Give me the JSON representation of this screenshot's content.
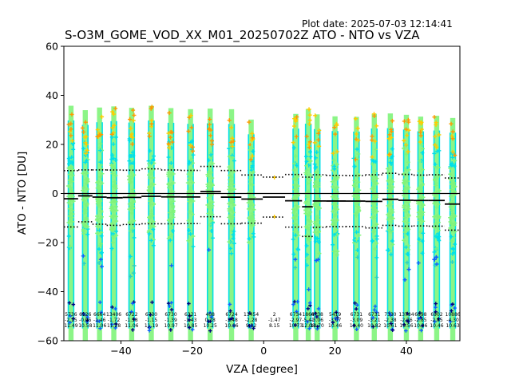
{
  "header": {
    "plot_date": "Plot date: 2025-07-03 12:14:41",
    "title": "S-O3M_GOME_VOD_XX_M01_20250702Z ATO - NTO vs VZA"
  },
  "chart_data": {
    "type": "scatter",
    "title": "S-O3M_GOME_VOD_XX_M01_20250702Z ATO - NTO vs VZA",
    "xlabel": "VZA [degree]",
    "ylabel": "ATO - NTO [DU]",
    "xlim": [
      -56,
      55
    ],
    "ylim": [
      -60,
      60
    ],
    "xticks": [
      -40,
      -20,
      0,
      20,
      40
    ],
    "yticks": [
      -60,
      -40,
      -20,
      0,
      20,
      40,
      60
    ],
    "grid": false,
    "colors": {
      "core": "#80f47a",
      "mid": "#00e0e8",
      "teal": "#2ad0c4",
      "yellow": "#ffcc00",
      "orange": "#ff9900",
      "blue": "#1060ff",
      "navy": "#000080",
      "reference": "#000000"
    },
    "columns": [
      {
        "vza": -54,
        "count": "5736",
        "mean": "-2.15",
        "std": "11.49"
      },
      {
        "vza": -50,
        "count": "6926",
        "mean": "-0.95",
        "std": "10.58"
      },
      {
        "vza": -46,
        "count": "6664",
        "mean": "-1.46",
        "std": "11.06"
      },
      {
        "vza": -42,
        "count": "13406",
        "mean": "-1.72",
        "std": "11.28"
      },
      {
        "vza": -37,
        "count": "6722",
        "mean": "-1.58",
        "std": "11.06"
      },
      {
        "vza": -31.5,
        "count": "6730",
        "mean": "-1.15",
        "std": "11.19"
      },
      {
        "vza": -26,
        "count": "6730",
        "mean": "-1.39",
        "std": "10.97"
      },
      {
        "vza": -20.5,
        "count": "6321",
        "mean": "-1.43",
        "std": "10.85"
      },
      {
        "vza": -15,
        "count": "408",
        "mean": "0.78",
        "std": "10.25"
      },
      {
        "vza": -9,
        "count": "6724",
        "mean": "-1.48",
        "std": "10.86"
      },
      {
        "vza": -3.5,
        "count": "13454",
        "mean": "-2.28",
        "std": "9.82"
      },
      {
        "vza": 3,
        "count": "2",
        "mean": "-1.47",
        "std": "8.15"
      },
      {
        "vza": 9,
        "count": "6734",
        "mean": "-2.97",
        "std": "10.73"
      },
      {
        "vza": 12.5,
        "count": "1864",
        "mean": "-5.41",
        "std": "12.08"
      },
      {
        "vza": 15,
        "count": "6738",
        "mean": "-3.06",
        "std": "10.70"
      },
      {
        "vza": 20,
        "count": "5419",
        "mean": "-3.07",
        "std": "10.46"
      },
      {
        "vza": 26,
        "count": "6731",
        "mean": "-3.09",
        "std": "10.40"
      },
      {
        "vza": 31,
        "count": "6731",
        "mean": "-3.21",
        "std": "10.82"
      },
      {
        "vza": 35.5,
        "count": "7330",
        "mean": "-2.38",
        "std": "10.61"
      },
      {
        "vza": 40,
        "count": "13784",
        "mean": "-2.76",
        "std": "10.56"
      },
      {
        "vza": 44,
        "count": "6898",
        "mean": "-2.85",
        "std": "10.36"
      },
      {
        "vza": 48.5,
        "count": "6902",
        "mean": "-2.85",
        "std": "10.46"
      },
      {
        "vza": 53,
        "count": "10886",
        "mean": "-4.30",
        "std": "10.63"
      }
    ]
  }
}
